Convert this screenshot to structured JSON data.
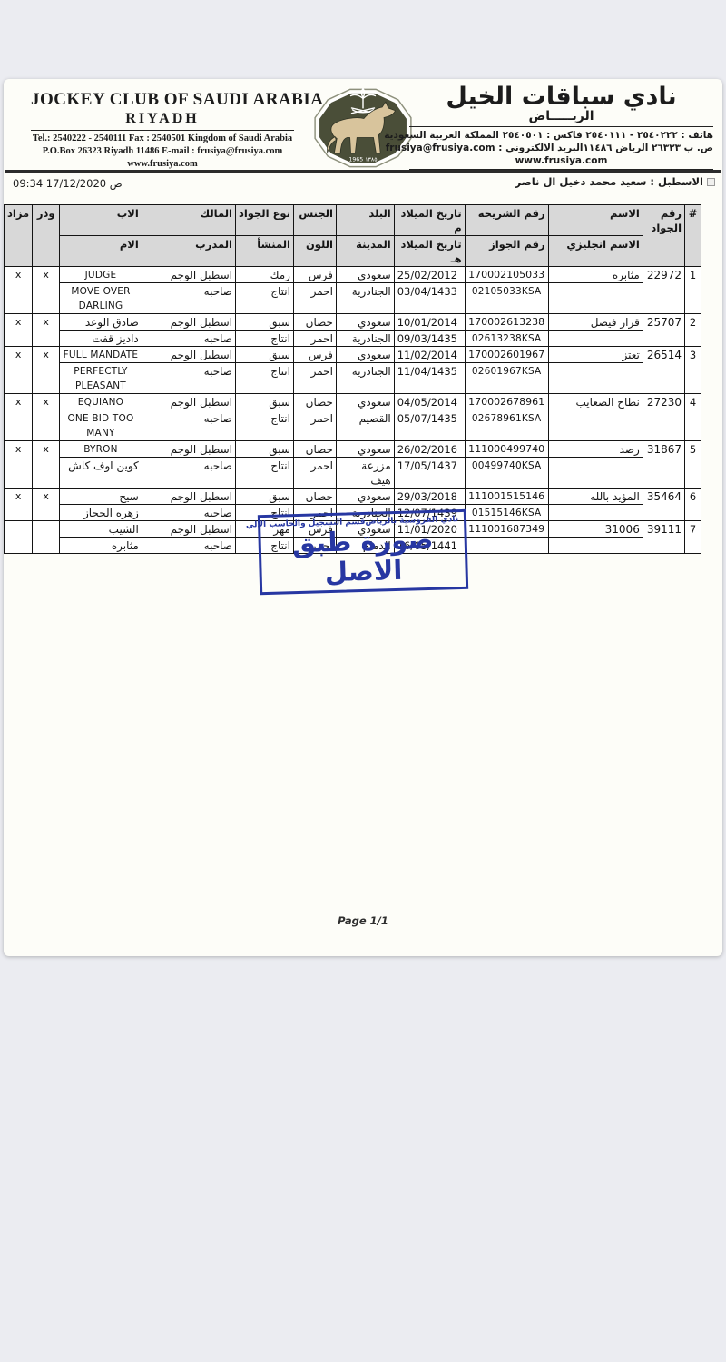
{
  "colors": {
    "page_bg": "#ebecf1",
    "paper_bg": "#fdfdf8",
    "table_header_bg": "#d8d8d8",
    "stamp_blue": "#2737a2",
    "logo_green": "#4a4e38",
    "logo_horse": "#d8c49c"
  },
  "letterhead": {
    "en": {
      "title": "JOCKEY CLUB OF SAUDI ARABIA",
      "city": "RIYADH",
      "contact1": "Tel.: 2540222 - 2540111   Fax : 2540501    Kingdom of Saudi Arabia",
      "contact2": "P.O.Box 26323 Riyadh 11486    E-mail : frusiya@frusiya.com",
      "website": "www.frusiya.com"
    },
    "ar": {
      "title": "نادي سباقات الخيل",
      "city": "الريـــــاض",
      "contact1": "هاتف : ٢٥٤٠٢٢٢ - ٢٥٤٠١١١   فاكس : ٢٥٤٠٥٠١    المملكة العربية السعودية",
      "contact2": "ص. ب ٢٦٣٢٣ الرياض ١١٤٨٦البريد الالكتروني : frusiya@frusiya.com",
      "website": "www.frusiya.com"
    },
    "logo_years": "1965    ١٣٨٥"
  },
  "meta": {
    "stable": "الاسطبل : سعيد محمد دخيل ال ناصر",
    "printed": "09:34 17/12/2020 ص"
  },
  "table": {
    "headers": {
      "num": "#",
      "horse_no": "رقم الجواد",
      "name_top": "الاسم",
      "name_bot": "الاسم انجليزي",
      "chip_top": "رقم الشريحة",
      "chip_bot": "رقم الجواز",
      "dob_top": "تاريخ الميلاد م",
      "dob_bot": "تاريخ الميلاد هـ",
      "country_top": "البلد",
      "country_bot": "المدينة",
      "sex_top": "الجنس",
      "sex_bot": "اللون",
      "type_top": "نوع الجواد",
      "type_bot": "المنشأ",
      "owner_top": "المالك",
      "owner_bot": "المدرب",
      "sire_top": "الاب",
      "sire_bot": "الام",
      "wethr": "وذر",
      "auction": "مزاد"
    },
    "rows": [
      {
        "num": "1",
        "horse_no": "22972",
        "name_ar": "مثابره",
        "name_en": "",
        "chip": "170002105033",
        "passport": "02105033KSA",
        "dob_g": "25/02/2012",
        "dob_h": "03/04/1433",
        "country": "سعودي",
        "city": "الجنادرية",
        "sex": "فرس",
        "color": "احمر",
        "type": "رمك",
        "origin": "انتاج",
        "owner": "اسطبل الوجم",
        "trainer": "صاحبه",
        "sire": "JUDGE",
        "dam": "MOVE OVER DARLING",
        "wethr": "x",
        "auction": "x"
      },
      {
        "num": "2",
        "horse_no": "25707",
        "name_ar": "قرار فيصل",
        "name_en": "",
        "chip": "170002613238",
        "passport": "02613238KSA",
        "dob_g": "10/01/2014",
        "dob_h": "09/03/1435",
        "country": "سعودي",
        "city": "الجنادرية",
        "sex": "حصان",
        "color": "احمر",
        "type": "سبق",
        "origin": "انتاج",
        "owner": "اسطبل الوجم",
        "trainer": "صاحبه",
        "sire": "صادق الوعد",
        "dam": "داديز قفت",
        "wethr": "x",
        "auction": "x"
      },
      {
        "num": "3",
        "horse_no": "26514",
        "name_ar": "تعتز",
        "name_en": "",
        "chip": "170002601967",
        "passport": "02601967KSA",
        "dob_g": "11/02/2014",
        "dob_h": "11/04/1435",
        "country": "سعودي",
        "city": "الجنادرية",
        "sex": "فرس",
        "color": "احمر",
        "type": "سبق",
        "origin": "انتاج",
        "owner": "اسطبل الوجم",
        "trainer": "صاحبه",
        "sire": "FULL MANDATE",
        "dam": "PERFECTLY PLEASANT",
        "wethr": "x",
        "auction": "x"
      },
      {
        "num": "4",
        "horse_no": "27230",
        "name_ar": "نطاح الصعايب",
        "name_en": "",
        "chip": "170002678961",
        "passport": "02678961KSA",
        "dob_g": "04/05/2014",
        "dob_h": "05/07/1435",
        "country": "سعودي",
        "city": "القصيم",
        "sex": "حصان",
        "color": "احمر",
        "type": "سبق",
        "origin": "انتاج",
        "owner": "اسطبل الوجم",
        "trainer": "صاحبه",
        "sire": "EQUIANO",
        "dam": "ONE BID TOO MANY",
        "wethr": "x",
        "auction": "x"
      },
      {
        "num": "5",
        "horse_no": "31867",
        "name_ar": "رصد",
        "name_en": "",
        "chip": "111000499740",
        "passport": "00499740KSA",
        "dob_g": "26/02/2016",
        "dob_h": "17/05/1437",
        "country": "سعودي",
        "city": "مزرعة هيف",
        "sex": "حصان",
        "color": "احمر",
        "type": "سبق",
        "origin": "انتاج",
        "owner": "اسطبل الوجم",
        "trainer": "صاحبه",
        "sire": "BYRON",
        "dam": "كوين اوف كاش",
        "wethr": "x",
        "auction": "x"
      },
      {
        "num": "6",
        "horse_no": "35464",
        "name_ar": "المؤيد بالله",
        "name_en": "",
        "chip": "111001515146",
        "passport": "01515146KSA",
        "dob_g": "29/03/2018",
        "dob_h": "12/07/1439",
        "country": "سعودي",
        "city": "الجنادرية",
        "sex": "حصان",
        "color": "احمر",
        "type": "سبق",
        "origin": "انتاج",
        "owner": "اسطبل الوجم",
        "trainer": "صاحبه",
        "sire": "سيح",
        "dam": "زهره الحجاز",
        "wethr": "x",
        "auction": "x"
      },
      {
        "num": "7",
        "horse_no": "39111",
        "name_ar": "31006",
        "name_en": "",
        "chip": "111001687349",
        "passport": "",
        "dob_g": "11/01/2020",
        "dob_h": "16/05/1441",
        "country": "سعودي",
        "city": "الدمام",
        "sex": "فرس",
        "color": "احمر",
        "type": "مهر",
        "origin": "انتاج",
        "owner": "اسطبل الوجم",
        "trainer": "صاحبه",
        "sire": "الشيب",
        "dam": "مثابره",
        "wethr": "",
        "auction": ""
      }
    ]
  },
  "stamp": {
    "org": "نادي الفروسية بالرياض",
    "dept": "قسم التسجيل والحاسب الالي",
    "title": "صورة طبق الاصل"
  },
  "footer": {
    "page": "Page 1/1"
  }
}
